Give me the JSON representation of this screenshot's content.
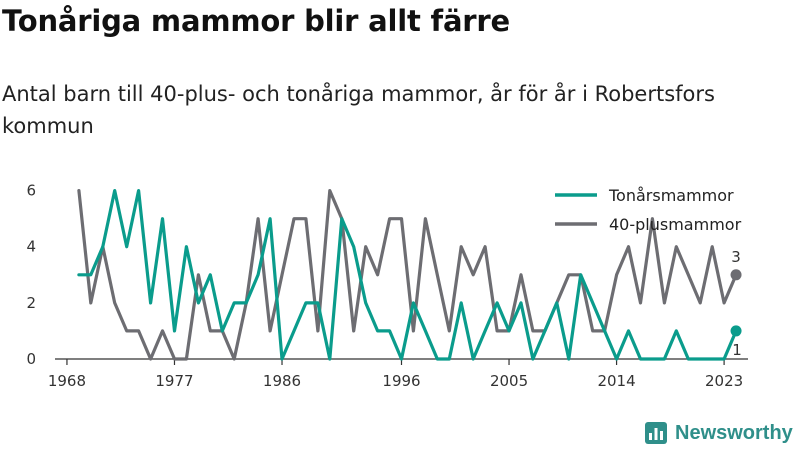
{
  "title": "Tonåriga mammor blir allt färre",
  "subtitle": "Antal barn till 40-plus- och tonåriga mammor, år för år i Robertsfors kommun",
  "brand": "Newsworthy",
  "brand_icon": "bar-chart-icon",
  "colors": {
    "teen": "#0a9c8c",
    "forty": "#6d6d72",
    "axis": "#333333",
    "text": "#333333",
    "brand": "#2f8f8a"
  },
  "chart_data": {
    "type": "line",
    "x": [
      1969,
      1970,
      1971,
      1972,
      1973,
      1974,
      1975,
      1976,
      1977,
      1978,
      1979,
      1980,
      1981,
      1982,
      1983,
      1984,
      1985,
      1986,
      1987,
      1988,
      1989,
      1990,
      1991,
      1992,
      1993,
      1994,
      1995,
      1996,
      1997,
      1998,
      1999,
      2000,
      2001,
      2002,
      2003,
      2004,
      2005,
      2006,
      2007,
      2008,
      2009,
      2010,
      2011,
      2012,
      2013,
      2014,
      2015,
      2016,
      2017,
      2018,
      2019,
      2020,
      2021,
      2022,
      2023,
      2024
    ],
    "series": [
      {
        "name": "Tonårsmammor",
        "color": "#0a9c8c",
        "values": [
          3,
          3,
          4,
          6,
          4,
          6,
          2,
          5,
          1,
          4,
          2,
          3,
          1,
          2,
          2,
          3,
          5,
          0,
          1,
          2,
          2,
          0,
          5,
          4,
          2,
          1,
          1,
          0,
          2,
          1,
          0,
          0,
          2,
          0,
          1,
          2,
          1,
          2,
          0,
          1,
          2,
          0,
          3,
          2,
          1,
          0,
          1,
          0,
          0,
          0,
          1,
          0,
          0,
          0,
          0,
          1
        ]
      },
      {
        "name": "40-plusmammor",
        "color": "#6d6d72",
        "values": [
          6,
          2,
          4,
          2,
          1,
          1,
          0,
          1,
          0,
          0,
          3,
          1,
          1,
          0,
          2,
          5,
          1,
          3,
          5,
          5,
          1,
          6,
          5,
          1,
          4,
          3,
          5,
          5,
          1,
          5,
          3,
          1,
          4,
          3,
          4,
          1,
          1,
          3,
          1,
          1,
          2,
          3,
          3,
          1,
          1,
          3,
          4,
          2,
          5,
          2,
          4,
          3,
          2,
          4,
          2,
          3
        ]
      }
    ],
    "legend": [
      "Tonårsmammor",
      "40-plusmammor"
    ],
    "legend_position": "top-right",
    "end_labels": [
      "3",
      "1"
    ],
    "x_ticks": [
      1968,
      1977,
      1986,
      1996,
      2005,
      2014,
      2023
    ],
    "y_ticks": [
      0,
      2,
      4,
      6
    ],
    "xlim": [
      1967,
      2025
    ],
    "ylim": [
      0,
      6.2
    ],
    "grid": false
  }
}
